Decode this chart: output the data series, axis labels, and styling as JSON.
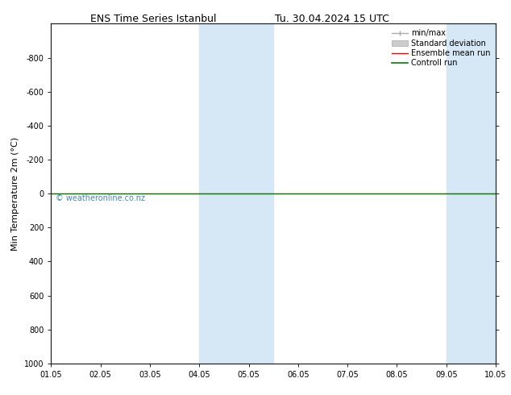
{
  "title_left": "ENS Time Series Istanbul",
  "title_right": "Tu. 30.04.2024 15 UTC",
  "ylabel": "Min Temperature 2m (°C)",
  "ylim_bottom": 1000,
  "ylim_top": -1000,
  "yticks": [
    -800,
    -600,
    -400,
    -200,
    0,
    200,
    400,
    600,
    800,
    1000
  ],
  "xtick_labels": [
    "01.05",
    "02.05",
    "03.05",
    "04.05",
    "05.05",
    "06.05",
    "07.05",
    "08.05",
    "09.05",
    "10.05"
  ],
  "xtick_days": [
    1,
    2,
    3,
    4,
    5,
    6,
    7,
    8,
    9,
    10
  ],
  "xlim_start_day": 1,
  "xlim_end_day": 10,
  "shade_regions": [
    {
      "start_day": 4,
      "end_day": 5.5
    },
    {
      "start_day": 9,
      "end_day": 10
    }
  ],
  "shade_color": "#d6e8f5",
  "green_line_color": "#008000",
  "red_line_color": "#ff0000",
  "watermark": "© weatheronline.co.nz",
  "watermark_color": "#4488bb",
  "background_color": "#ffffff",
  "legend_entries": [
    "min/max",
    "Standard deviation",
    "Ensemble mean run",
    "Controll run"
  ],
  "minmax_color": "#aaaaaa",
  "std_color": "#cccccc",
  "title_fontsize": 9,
  "ylabel_fontsize": 8,
  "tick_fontsize": 7,
  "legend_fontsize": 7,
  "watermark_fontsize": 7
}
